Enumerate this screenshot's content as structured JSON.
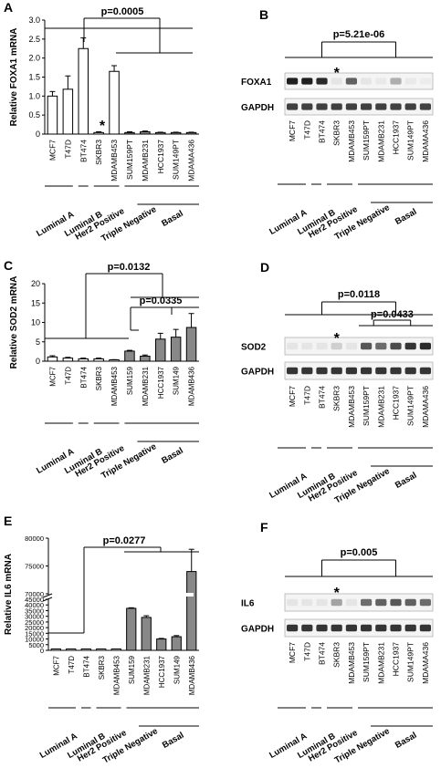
{
  "groups": [
    "Luminal A",
    "Luminal B",
    "Her2 Positive",
    "Triple Negative",
    "Basal"
  ],
  "panel_letters": [
    "A",
    "B",
    "C",
    "D",
    "E",
    "F"
  ],
  "chart_data": [
    {
      "panel": "A",
      "type": "bar",
      "ylabel": "Relative FOXA1 mRNA",
      "categories": [
        "MCF7",
        "T47D",
        "BT474",
        "SKBR3",
        "MDAMB453",
        "SUM159PT",
        "MDAMB231",
        "HCC1937",
        "SUM149PT",
        "MDAMA436"
      ],
      "values": [
        1.0,
        1.18,
        2.25,
        0.04,
        1.65,
        0.04,
        0.06,
        0.04,
        0.04,
        0.04
      ],
      "errors": [
        0.12,
        0.35,
        0.28,
        0.02,
        0.15,
        0.02,
        0.02,
        0.01,
        0.01,
        0.01
      ],
      "ylim": [
        0,
        3.0
      ],
      "yticks": [
        "0",
        "0.5",
        "1.0",
        "1.5",
        "2.0",
        "2.5",
        "3.0"
      ],
      "pvalues": [
        "p=0.0005"
      ],
      "asterisk": "*",
      "bar_colors": [
        "#ffffff",
        "#ffffff",
        "#ffffff",
        "#ffffff",
        "#ffffff",
        "#888888",
        "#888888",
        "#888888",
        "#888888",
        "#888888"
      ]
    },
    {
      "panel": "C",
      "type": "bar",
      "ylabel": "Relative SOD2 mRNA",
      "categories": [
        "MCF7",
        "T47D",
        "BT474",
        "SKBR3",
        "MDAMB453",
        "SUM159",
        "MDAMB231",
        "HCC1937",
        "SUM149",
        "MDAMB436"
      ],
      "values": [
        1.1,
        0.8,
        0.6,
        0.6,
        0.3,
        2.6,
        1.3,
        5.7,
        6.2,
        8.7
      ],
      "errors": [
        0.3,
        0.2,
        0.2,
        0.2,
        0.1,
        0.2,
        0.3,
        1.5,
        2.0,
        3.6
      ],
      "ylim": [
        0,
        20
      ],
      "yticks": [
        "0",
        "5",
        "10",
        "15",
        "20"
      ],
      "pvalues": [
        "p=0.0132",
        "p=0.0335"
      ],
      "bar_colors": [
        "#ffffff",
        "#ffffff",
        "#ffffff",
        "#ffffff",
        "#ffffff",
        "#888888",
        "#888888",
        "#888888",
        "#888888",
        "#888888"
      ]
    },
    {
      "panel": "E",
      "type": "bar",
      "ylabel": "Relative IL6 mRNA",
      "categories": [
        "MCF7",
        "T47D",
        "BT474",
        "SKBR3",
        "MDAMB453",
        "SUM159",
        "MDAMB231",
        "HCC1937",
        "SUM149",
        "MDAMB436"
      ],
      "values": [
        300,
        300,
        300,
        300,
        300,
        37000,
        29000,
        10000,
        12000,
        74000
      ],
      "errors": [
        0,
        0,
        0,
        0,
        0,
        500,
        1500,
        500,
        1000,
        4000
      ],
      "ylim": [
        0,
        80000
      ],
      "yticks": [
        "0",
        "5000",
        "10000",
        "15000",
        "20000",
        "25000",
        "30000",
        "35000",
        "40000",
        "45000",
        "70000",
        "75000",
        "80000"
      ],
      "axis_break": [
        45000,
        70000
      ],
      "pvalues": [
        "p=0.0277"
      ],
      "bar_colors": [
        "#ffffff",
        "#ffffff",
        "#ffffff",
        "#ffffff",
        "#ffffff",
        "#888888",
        "#888888",
        "#888888",
        "#888888",
        "#888888"
      ]
    }
  ],
  "blots": [
    {
      "panel": "B",
      "pvalue": "p=5.21e-06",
      "brackets": [],
      "asterisk": "*",
      "rows": [
        "FOXA1",
        "GAPDH"
      ],
      "lanes": [
        "MCF7",
        "T47D",
        "BT474",
        "SKBR3",
        "MDAMB453",
        "SUM159PT",
        "MDAMB231",
        "HCC1937",
        "SUM149PT",
        "MDAMA436"
      ],
      "band_intensity": [
        [
          0.95,
          0.95,
          0.9,
          0.05,
          0.65,
          0.05,
          0.03,
          0.3,
          0.03,
          0.02
        ],
        [
          0.8,
          0.8,
          0.8,
          0.8,
          0.8,
          0.8,
          0.8,
          0.8,
          0.8,
          0.8
        ]
      ]
    },
    {
      "panel": "D",
      "pvalue": "p=0.0118",
      "brackets": [
        "p=0.0433"
      ],
      "asterisk": "*",
      "rows": [
        "SOD2",
        "GAPDH"
      ],
      "lanes": [
        "MCF7",
        "T47D",
        "BT474",
        "SKBR3",
        "MDAMB453",
        "SUM159PT",
        "MDAMB231",
        "HCC1937",
        "SUM149PT",
        "MDAMA436"
      ],
      "band_intensity": [
        [
          0.05,
          0.05,
          0.05,
          0.15,
          0.05,
          0.7,
          0.6,
          0.75,
          0.85,
          0.9
        ],
        [
          0.85,
          0.85,
          0.85,
          0.85,
          0.85,
          0.85,
          0.85,
          0.85,
          0.85,
          0.85
        ]
      ]
    },
    {
      "panel": "F",
      "pvalue": "p=0.005",
      "brackets": [],
      "asterisk": "*",
      "rows": [
        "IL6",
        "GAPDH"
      ],
      "lanes": [
        "MCF7",
        "T47D",
        "BT474",
        "SKBR3",
        "MDAMB453",
        "SUM159PT",
        "MDAMB231",
        "HCC1937",
        "SUM149PT",
        "MDAMA436"
      ],
      "band_intensity": [
        [
          0.05,
          0.05,
          0.05,
          0.35,
          0.05,
          0.6,
          0.65,
          0.7,
          0.65,
          0.6
        ],
        [
          0.85,
          0.85,
          0.85,
          0.85,
          0.85,
          0.85,
          0.85,
          0.85,
          0.85,
          0.85
        ]
      ]
    }
  ]
}
